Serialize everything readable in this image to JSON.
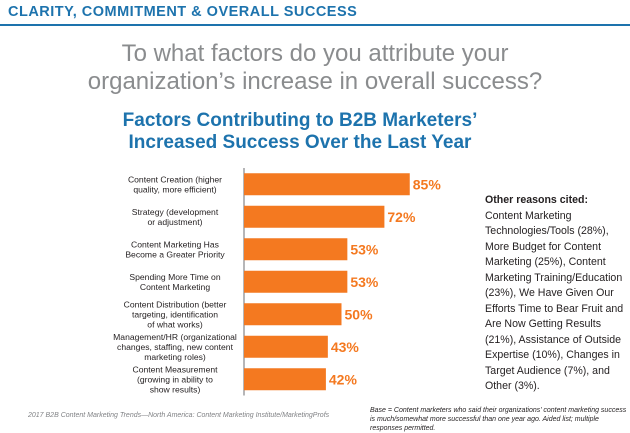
{
  "header": {
    "title": "CLARITY, COMMITMENT & OVERALL SUCCESS"
  },
  "question": {
    "line1": "To what factors do you attribute your",
    "line2": "organization’s increase in overall success?"
  },
  "chart_data": {
    "type": "bar",
    "orientation": "horizontal",
    "title": "Factors Contributing to B2B Marketers’ Increased Success Over the Last Year",
    "title_lines": [
      "Factors Contributing to B2B Marketers’",
      "Increased Success Over the Last Year"
    ],
    "categories": [
      [
        "Content Creation (higher",
        "quality, more efficient)"
      ],
      [
        "Strategy (development",
        "or adjustment)"
      ],
      [
        "Content Marketing Has",
        "Become a Greater Priority"
      ],
      [
        "Spending More Time on",
        "Content Marketing"
      ],
      [
        "Content Distribution (better",
        "targeting, identification",
        "of what works)"
      ],
      [
        "Management/HR (organizational",
        "changes, staffing, new content",
        "marketing roles)"
      ],
      [
        "Content Measurement",
        "(growing in ability to",
        "show results)"
      ]
    ],
    "values": [
      85,
      72,
      53,
      53,
      50,
      43,
      42
    ],
    "value_labels": [
      "85%",
      "72%",
      "53%",
      "53%",
      "50%",
      "43%",
      "42%"
    ],
    "xlim": [
      0,
      100
    ],
    "grid": false,
    "bar_color": "#f47920",
    "label_color": "#f47920"
  },
  "note": {
    "heading": "Other reasons cited:",
    "body": " Content Marketing Technologies/Tools (28%), More Budget for Content Marketing (25%), Content Marketing Training/Education (23%), We Have Given Our Efforts Time to Bear Fruit and Are Now Getting Results (21%), Assistance of Outside Expertise (10%), Changes in Target Audience (7%), and Other (3%)."
  },
  "footer": {
    "source": "2017 B2B Content Marketing Trends—North America: Content Marketing Institute/MarketingProfs",
    "base": "Base = Content marketers who said their organizations’ content marketing success is much/somewhat more successful than one year ago. Aided list; multiple responses permitted."
  },
  "colors": {
    "accent": "#1d73ad",
    "bar": "#f47920",
    "question_text": "#8a8c8e"
  }
}
